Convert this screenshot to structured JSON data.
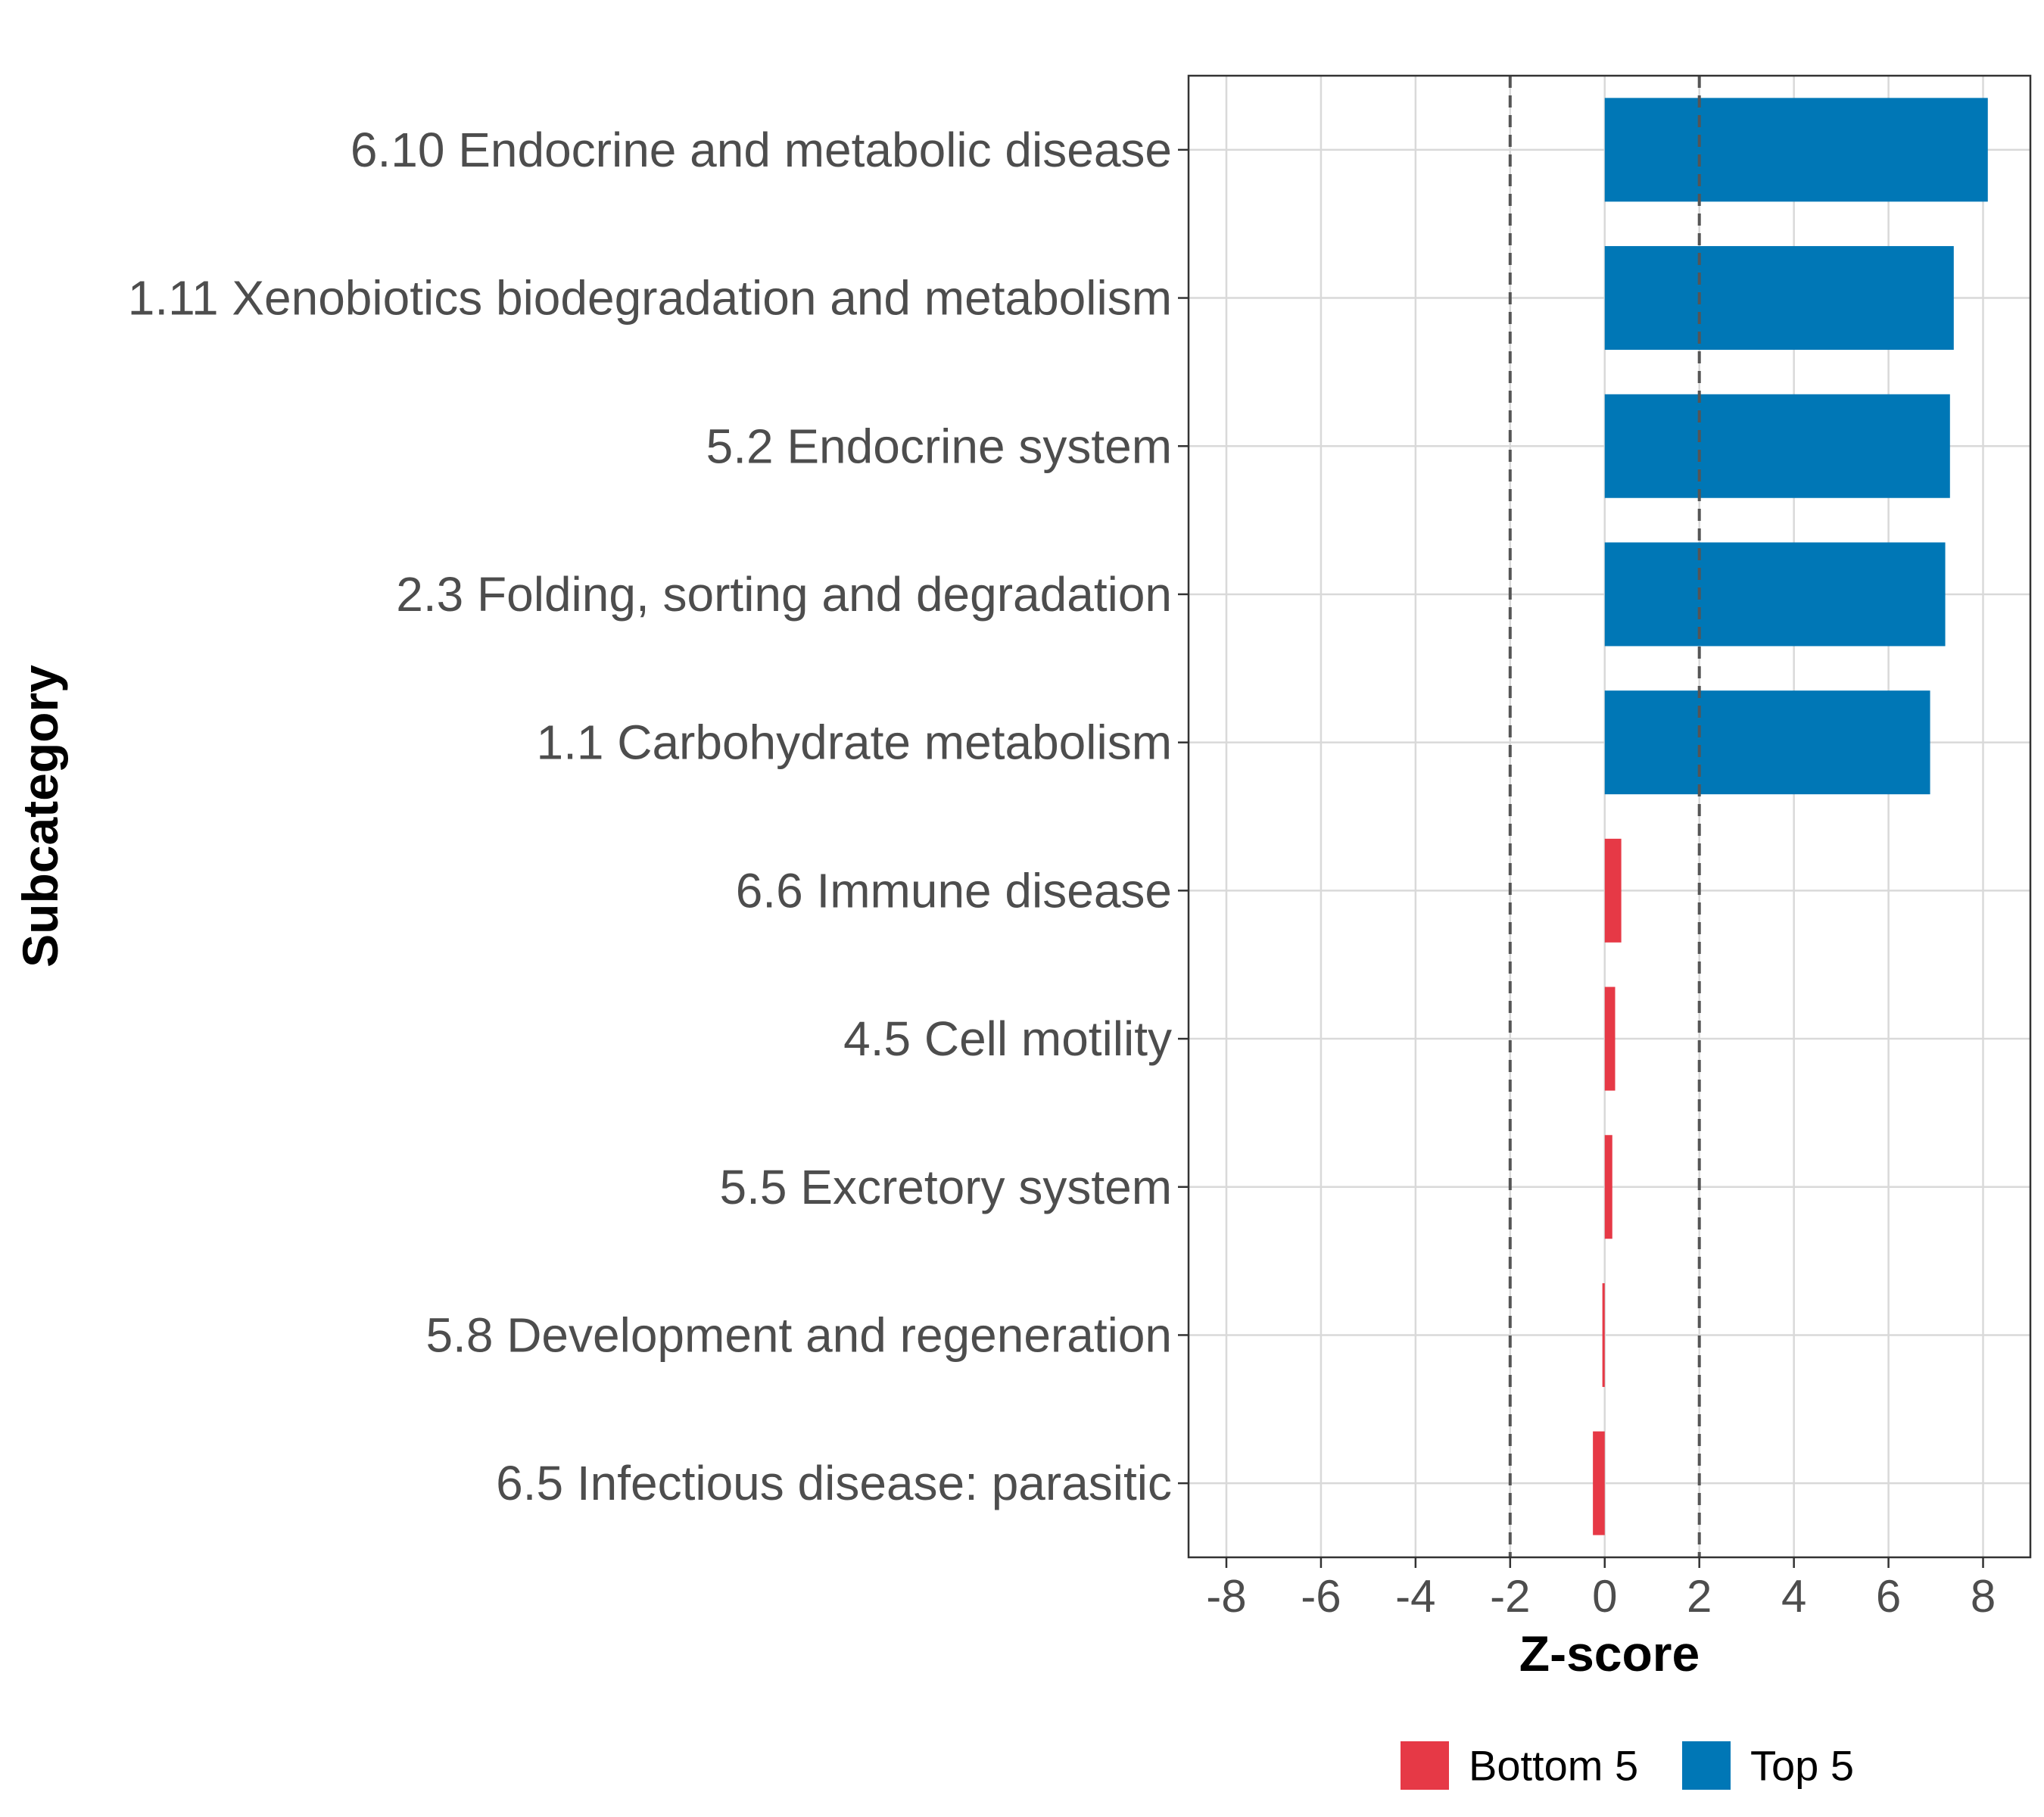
{
  "chart_data": {
    "type": "bar",
    "orientation": "horizontal",
    "title": "",
    "xlabel": "Z-score",
    "ylabel": "Subcategory",
    "xlim": [
      -8.8,
      9.0
    ],
    "xticks": [
      -8,
      -6,
      -4,
      -2,
      0,
      2,
      4,
      6,
      8
    ],
    "reference_lines": [
      -2,
      2
    ],
    "grid": true,
    "legend_position": "bottom",
    "categories": [
      "6.10 Endocrine and metabolic disease",
      "1.11 Xenobiotics biodegradation and metabolism",
      "5.2 Endocrine system",
      "2.3 Folding, sorting and degradation",
      "1.1 Carbohydrate metabolism",
      "6.6 Immune disease",
      "4.5 Cell motility",
      "5.5 Excretory system",
      "5.8 Development and regeneration",
      "6.5 Infectious disease: parasitic"
    ],
    "values": [
      8.1,
      7.38,
      7.3,
      7.2,
      6.88,
      0.35,
      0.22,
      0.16,
      -0.05,
      -0.25
    ],
    "groups": [
      "Top 5",
      "Top 5",
      "Top 5",
      "Top 5",
      "Top 5",
      "Bottom 5",
      "Bottom 5",
      "Bottom 5",
      "Bottom 5",
      "Bottom 5"
    ],
    "legend": [
      {
        "name": "Bottom 5",
        "color": "#e63946"
      },
      {
        "name": "Top 5",
        "color": "#0077b6"
      }
    ]
  }
}
